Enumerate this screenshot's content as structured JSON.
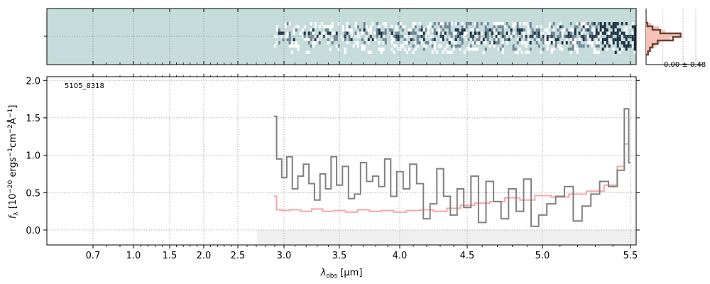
{
  "chart_data": [
    {
      "type": "heatmap",
      "panel": "2d-spectrum",
      "x_axis": "shared with main spectrum panel",
      "data_coverage": {
        "x_start": 2.89,
        "x_end": 5.52
      },
      "colormap": [
        "#c5dcdb",
        "#ffffff",
        "#1f3447"
      ],
      "grid": true
    },
    {
      "type": "line",
      "panel": "1d-spectrum",
      "object_label": "5105_8318",
      "xlabel_prefix": "λ",
      "xlabel_sub": "obs",
      "xlabel_unit": " [μm]",
      "ylabel": "f_λ [10^-20 ergs^-1cm^-2Å^-1]",
      "ylim": [
        -0.2,
        2.05
      ],
      "yticks": [
        0.0,
        0.5,
        1.0,
        1.5,
        2.0
      ],
      "ytick_labels": [
        "0.0",
        "0.5",
        "1.0",
        "1.5",
        "2.0"
      ],
      "xtick_values": [
        0.7,
        1.0,
        1.5,
        2.0,
        2.5,
        3.0,
        3.5,
        4.0,
        4.5,
        5.0,
        5.5
      ],
      "xtick_labels": [
        "0.7",
        "1.0",
        "1.5",
        "2.0",
        "2.5",
        "3.0",
        "3.5",
        "4.0",
        "4.5",
        "5.0",
        "5.5"
      ],
      "grid": true,
      "colors": {
        "data": "#808080",
        "model": "#f4a8a6",
        "shade": "#efefef"
      },
      "series": [
        {
          "role": "observed",
          "x": [
            2.89,
            2.95,
            3.0,
            3.05,
            3.1,
            3.15,
            3.2,
            3.25,
            3.3,
            3.35,
            3.4,
            3.45,
            3.5,
            3.55,
            3.6,
            3.65,
            3.7,
            3.75,
            3.8,
            3.85,
            3.9,
            3.95,
            4.0,
            4.05,
            4.1,
            4.15,
            4.2,
            4.25,
            4.3,
            4.35,
            4.4,
            4.45,
            4.5,
            4.55,
            4.6,
            4.65,
            4.7,
            4.75,
            4.8,
            4.85,
            4.9,
            4.95,
            5.0,
            5.05,
            5.1,
            5.15,
            5.2,
            5.25,
            5.3,
            5.35,
            5.4,
            5.45,
            5.48,
            5.5
          ],
          "y": [
            1.52,
            0.95,
            0.7,
            0.98,
            0.55,
            0.72,
            0.88,
            0.62,
            0.4,
            0.75,
            0.55,
            0.98,
            0.6,
            0.85,
            0.42,
            0.48,
            0.9,
            0.65,
            0.72,
            0.58,
            0.95,
            0.45,
            0.78,
            0.55,
            0.88,
            0.62,
            0.15,
            0.35,
            0.82,
            0.45,
            0.2,
            0.55,
            0.3,
            0.72,
            0.1,
            0.65,
            0.38,
            0.15,
            0.55,
            0.25,
            0.68,
            0.05,
            0.2,
            0.35,
            0.45,
            0.58,
            0.12,
            0.32,
            0.48,
            0.65,
            0.58,
            0.8,
            1.62,
            0.9
          ]
        },
        {
          "role": "model",
          "x": [
            2.89,
            2.95,
            3.0,
            3.1,
            3.2,
            3.3,
            3.4,
            3.5,
            3.6,
            3.7,
            3.8,
            3.9,
            4.0,
            4.1,
            4.2,
            4.3,
            4.4,
            4.5,
            4.6,
            4.7,
            4.8,
            4.9,
            5.0,
            5.1,
            5.2,
            5.3,
            5.4,
            5.45,
            5.48,
            5.5
          ],
          "y": [
            0.45,
            0.27,
            0.26,
            0.27,
            0.25,
            0.28,
            0.25,
            0.26,
            0.24,
            0.27,
            0.25,
            0.26,
            0.24,
            0.26,
            0.27,
            0.25,
            0.29,
            0.33,
            0.36,
            0.38,
            0.43,
            0.4,
            0.46,
            0.44,
            0.48,
            0.52,
            0.6,
            0.85,
            1.15,
            0.9
          ]
        }
      ]
    },
    {
      "type": "bar",
      "panel": "residual-histogram",
      "annotation": "0.00 ± 0.48",
      "colors": {
        "data": "#6b4232",
        "model": "#f6c2b8"
      }
    }
  ]
}
